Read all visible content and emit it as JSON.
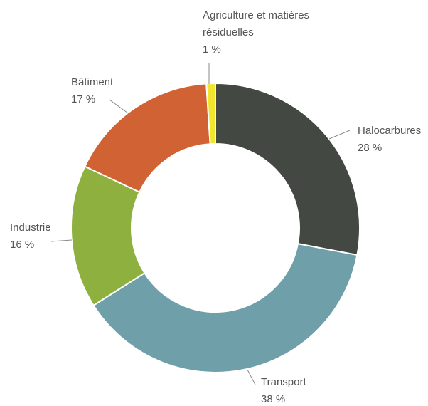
{
  "chart_data": {
    "type": "pie",
    "variant": "donut",
    "legend": "none",
    "slices": [
      {
        "label": "Halocarbures",
        "value": 28,
        "value_label": "28 %",
        "color": "#434842"
      },
      {
        "label": "Transport",
        "value": 38,
        "value_label": "38 %",
        "color": "#6fa0aa"
      },
      {
        "label": "Industrie",
        "value": 16,
        "value_label": "16 %",
        "color": "#8db03e"
      },
      {
        "label": "Bâtiment",
        "value": 17,
        "value_label": "17 %",
        "color": "#d06234"
      },
      {
        "label": "Agriculture et matières résiduelles",
        "label_lines": [
          "Agriculture et matières",
          "résiduelles"
        ],
        "value": 1,
        "value_label": "1 %",
        "color": "#f2e52e"
      }
    ]
  }
}
